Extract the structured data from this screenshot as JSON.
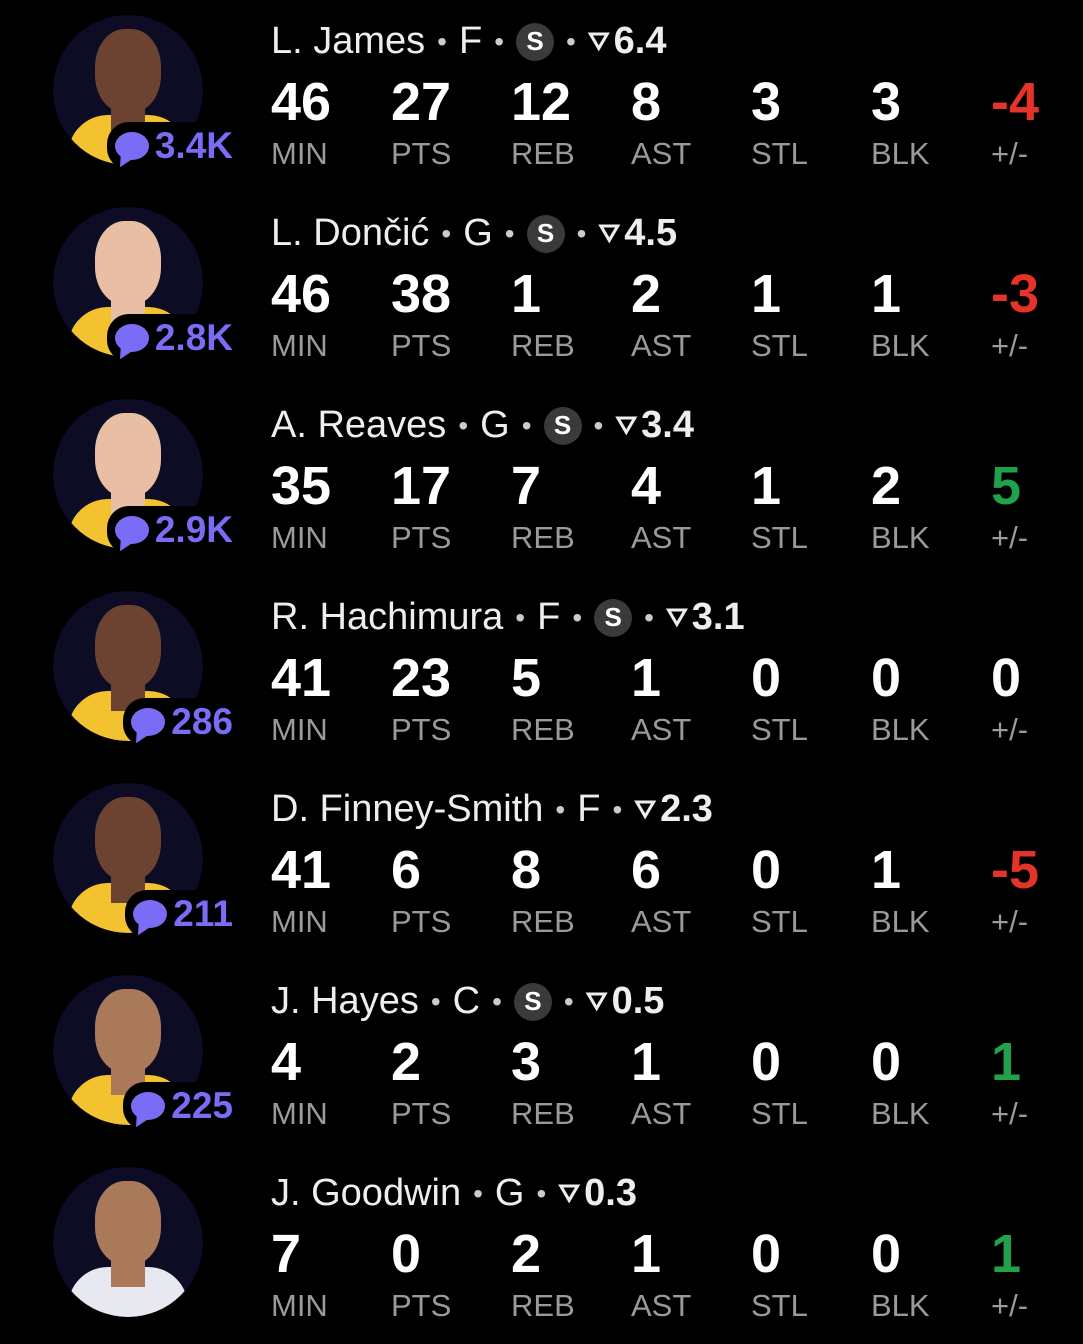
{
  "stat_labels": [
    "MIN",
    "PTS",
    "REB",
    "AST",
    "STL",
    "BLK",
    "+/-"
  ],
  "colors": {
    "comments": "#7b6cf6",
    "negative": "#e5332a",
    "positive": "#1fa24b"
  },
  "icons": {
    "comments": "chat-bubble-icon",
    "starter": "starter-badge-icon",
    "rating": "funnel-icon"
  },
  "starter_badge": "S",
  "players": [
    {
      "name": "L. James",
      "pos": "F",
      "starter": true,
      "rating": "6.4",
      "comments": "3.4K",
      "stats": [
        "46",
        "27",
        "12",
        "8",
        "3",
        "3",
        "-4"
      ],
      "pm_sign": "neg"
    },
    {
      "name": "L. Dončić",
      "pos": "G",
      "starter": true,
      "rating": "4.5",
      "comments": "2.8K",
      "stats": [
        "46",
        "38",
        "1",
        "2",
        "1",
        "1",
        "-3"
      ],
      "pm_sign": "neg"
    },
    {
      "name": "A. Reaves",
      "pos": "G",
      "starter": true,
      "rating": "3.4",
      "comments": "2.9K",
      "stats": [
        "35",
        "17",
        "7",
        "4",
        "1",
        "2",
        "5"
      ],
      "pm_sign": "pos"
    },
    {
      "name": "R. Hachimura",
      "pos": "F",
      "starter": true,
      "rating": "3.1",
      "comments": "286",
      "stats": [
        "41",
        "23",
        "5",
        "1",
        "0",
        "0",
        "0"
      ],
      "pm_sign": "zero"
    },
    {
      "name": "D. Finney-Smith",
      "pos": "F",
      "starter": false,
      "rating": "2.3",
      "comments": "211",
      "stats": [
        "41",
        "6",
        "8",
        "6",
        "0",
        "1",
        "-5"
      ],
      "pm_sign": "neg"
    },
    {
      "name": "J. Hayes",
      "pos": "C",
      "starter": true,
      "rating": "0.5",
      "comments": "225",
      "stats": [
        "4",
        "2",
        "3",
        "1",
        "0",
        "0",
        "1"
      ],
      "pm_sign": "pos"
    },
    {
      "name": "J. Goodwin",
      "pos": "G",
      "starter": false,
      "rating": "0.3",
      "comments": null,
      "stats": [
        "7",
        "0",
        "2",
        "1",
        "0",
        "0",
        "1"
      ],
      "pm_sign": "pos"
    }
  ]
}
